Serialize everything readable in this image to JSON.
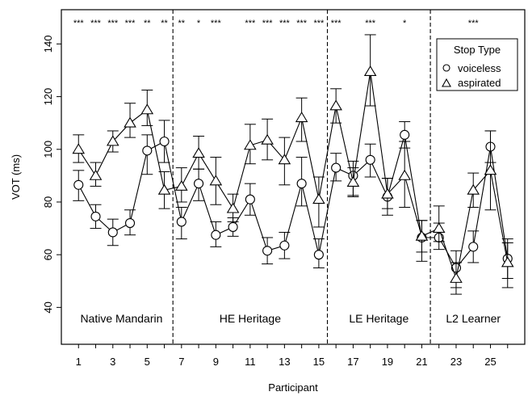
{
  "chart_data": {
    "type": "line",
    "xlabel": "Participant",
    "ylabel": "VOT (ms)",
    "xlim": [
      0,
      27
    ],
    "ylim": [
      26,
      153
    ],
    "x_ticks": [
      1,
      3,
      5,
      7,
      9,
      11,
      13,
      15,
      17,
      19,
      21,
      23,
      25
    ],
    "y_ticks": [
      40,
      60,
      80,
      100,
      120,
      140
    ],
    "grid": false,
    "legend": {
      "title": "Stop Type",
      "position": "top-right",
      "entries": [
        {
          "label": "voiceless",
          "marker": "circle"
        },
        {
          "label": "aspirated",
          "marker": "triangle"
        }
      ]
    },
    "groups": [
      {
        "label": "Native Mandarin",
        "x": 3.5
      },
      {
        "label": "HE Heritage",
        "x": 11
      },
      {
        "label": "LE Heritage",
        "x": 18.5
      },
      {
        "label": "L2 Learner",
        "x": 24
      }
    ],
    "group_dividers": [
      6.5,
      15.5,
      21.5
    ],
    "x": [
      1,
      2,
      3,
      4,
      5,
      6,
      7,
      8,
      9,
      10,
      11,
      12,
      13,
      14,
      15,
      16,
      17,
      18,
      19,
      20,
      21,
      22,
      23,
      24,
      25,
      26
    ],
    "series": [
      {
        "name": "voiceless",
        "marker": "circle",
        "values": [
          86.5,
          74.5,
          68.5,
          72,
          99.5,
          103,
          72.5,
          87,
          67.5,
          70.5,
          81,
          61.5,
          63.5,
          87,
          60,
          93,
          90,
          96,
          82,
          105.5,
          66.5,
          66.5,
          55,
          63,
          101,
          58.5
        ],
        "err_low": [
          80.5,
          70,
          63.5,
          67.5,
          90.5,
          95,
          66,
          80.5,
          63,
          67,
          75,
          56.5,
          58.5,
          78.5,
          55,
          88,
          82,
          89.5,
          75,
          100.5,
          57.5,
          62,
          47.5,
          57,
          95,
          47.5
        ],
        "err_high": [
          92,
          79,
          73.5,
          77,
          105.5,
          111,
          78,
          92.5,
          72.5,
          74,
          87,
          66.5,
          68.5,
          97,
          66,
          98.5,
          95.5,
          102,
          89,
          110.5,
          73,
          72,
          61.5,
          69,
          107,
          66
        ]
      },
      {
        "name": "aspirated",
        "marker": "triangle",
        "values": [
          100,
          90,
          103,
          110,
          115,
          84.5,
          86,
          98.5,
          88,
          77.5,
          101.5,
          103.5,
          96,
          112,
          81,
          116.5,
          87.5,
          129.5,
          83,
          90,
          67,
          70,
          51,
          84.5,
          92,
          57
        ],
        "err_low": [
          95,
          86,
          99,
          104.5,
          109,
          77.5,
          80,
          92.5,
          79,
          72.5,
          94.5,
          96,
          86.5,
          103,
          70.5,
          110,
          82.5,
          116.5,
          77.5,
          78,
          61,
          65,
          45,
          78,
          77,
          51
        ],
        "err_high": [
          105.5,
          95,
          107,
          117.5,
          122.5,
          91.5,
          93,
          105,
          97,
          83,
          109.5,
          111.5,
          104.5,
          119.5,
          89.5,
          123,
          93,
          143.5,
          89,
          103,
          73,
          78.5,
          57,
          91,
          107,
          64.5
        ]
      }
    ],
    "significance": [
      {
        "x": 1,
        "label": "***"
      },
      {
        "x": 2,
        "label": "***"
      },
      {
        "x": 3,
        "label": "***"
      },
      {
        "x": 4,
        "label": "***"
      },
      {
        "x": 5,
        "label": "**"
      },
      {
        "x": 6,
        "label": "**"
      },
      {
        "x": 7,
        "label": "**"
      },
      {
        "x": 8,
        "label": "*"
      },
      {
        "x": 9,
        "label": "***"
      },
      {
        "x": 11,
        "label": "***"
      },
      {
        "x": 12,
        "label": "***"
      },
      {
        "x": 13,
        "label": "***"
      },
      {
        "x": 14,
        "label": "***"
      },
      {
        "x": 15,
        "label": "***"
      },
      {
        "x": 16,
        "label": "***"
      },
      {
        "x": 18,
        "label": "***"
      },
      {
        "x": 20,
        "label": "*"
      },
      {
        "x": 24,
        "label": "***"
      }
    ]
  }
}
